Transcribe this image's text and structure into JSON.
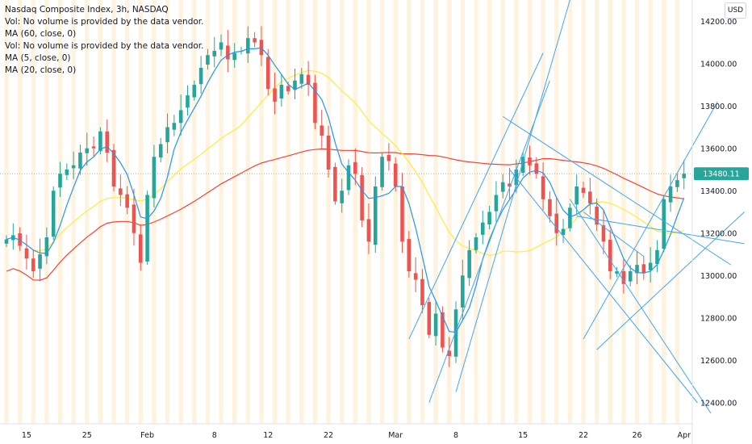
{
  "chart_data": {
    "type": "candlestick",
    "title": "Nasdaq Composite Index, 3h, NASDAQ",
    "legend_lines": [
      "Nasdaq Composite Index, 3h, NASDAQ",
      "Vol: No volume is provided by the data vendor.",
      "MA (60, close, 0)",
      "Vol: No volume is provided by the data vendor.",
      "MA (5, close, 0)",
      "MA (20, close, 0)"
    ],
    "currency": "USD",
    "last_price": "13480.11",
    "ylim": [
      12300,
      14300
    ],
    "y_ticks": [
      12400,
      12600,
      12800,
      13000,
      13200,
      13400,
      13600,
      13800,
      14000,
      14200
    ],
    "y_tick_labels": [
      "12400.00",
      "12600.00",
      "12800.00",
      "13000.00",
      "13200.00",
      "13400.00",
      "13600.00",
      "13800.00",
      "14000.00",
      "14200.00"
    ],
    "x_ticks": [
      {
        "label": "15",
        "bar": 3
      },
      {
        "label": "25",
        "bar": 12
      },
      {
        "label": "Feb",
        "bar": 21
      },
      {
        "label": "8",
        "bar": 31
      },
      {
        "label": "12",
        "bar": 39
      },
      {
        "label": "22",
        "bar": 48
      },
      {
        "label": "Mar",
        "bar": 58
      },
      {
        "label": "8",
        "bar": 67
      },
      {
        "label": "15",
        "bar": 77
      },
      {
        "label": "22",
        "bar": 86
      },
      {
        "label": "26",
        "bar": 94
      },
      {
        "label": "Apr",
        "bar": 101
      }
    ],
    "closes": [
      13170,
      13190,
      13140,
      13080,
      13020,
      13100,
      13180,
      13400,
      13480,
      13500,
      13520,
      13580,
      13600,
      13600,
      13680,
      13580,
      13420,
      13380,
      13320,
      13200,
      13060,
      13380,
      13560,
      13620,
      13700,
      13720,
      13780,
      13850,
      13900,
      13980,
      14040,
      14060,
      14100,
      14020,
      14050,
      14060,
      14120,
      14100,
      14040,
      13880,
      13820,
      13900,
      13870,
      13920,
      13950,
      13900,
      13720,
      13660,
      13500,
      13350,
      13400,
      13520,
      13480,
      13260,
      13160,
      13420,
      13560,
      13540,
      13420,
      13160,
      13020,
      12980,
      12860,
      12720,
      12820,
      12660,
      12620,
      12840,
      13000,
      13120,
      13180,
      13250,
      13300,
      13380,
      13440,
      13420,
      13500,
      13560,
      13520,
      13480,
      13360,
      13280,
      13200,
      13220,
      13320,
      13420,
      13390,
      13340,
      13240,
      13160,
      13020,
      13020,
      12960,
      13020,
      13050,
      13010,
      13060,
      13120,
      13360,
      13420,
      13450,
      13480
    ],
    "series": [
      {
        "name": "MA (5, close, 0)",
        "color": "#2196f3"
      },
      {
        "name": "MA (20, close, 0)",
        "color": "#ffeb3b"
      },
      {
        "name": "MA (60, close, 0)",
        "color": "#f44336"
      }
    ],
    "colors": {
      "up": "#26a69a",
      "down": "#ef5350",
      "trendline": "#42a5f5",
      "session_stripe": "#fff3e0",
      "price_tag": "#26a69a"
    }
  }
}
